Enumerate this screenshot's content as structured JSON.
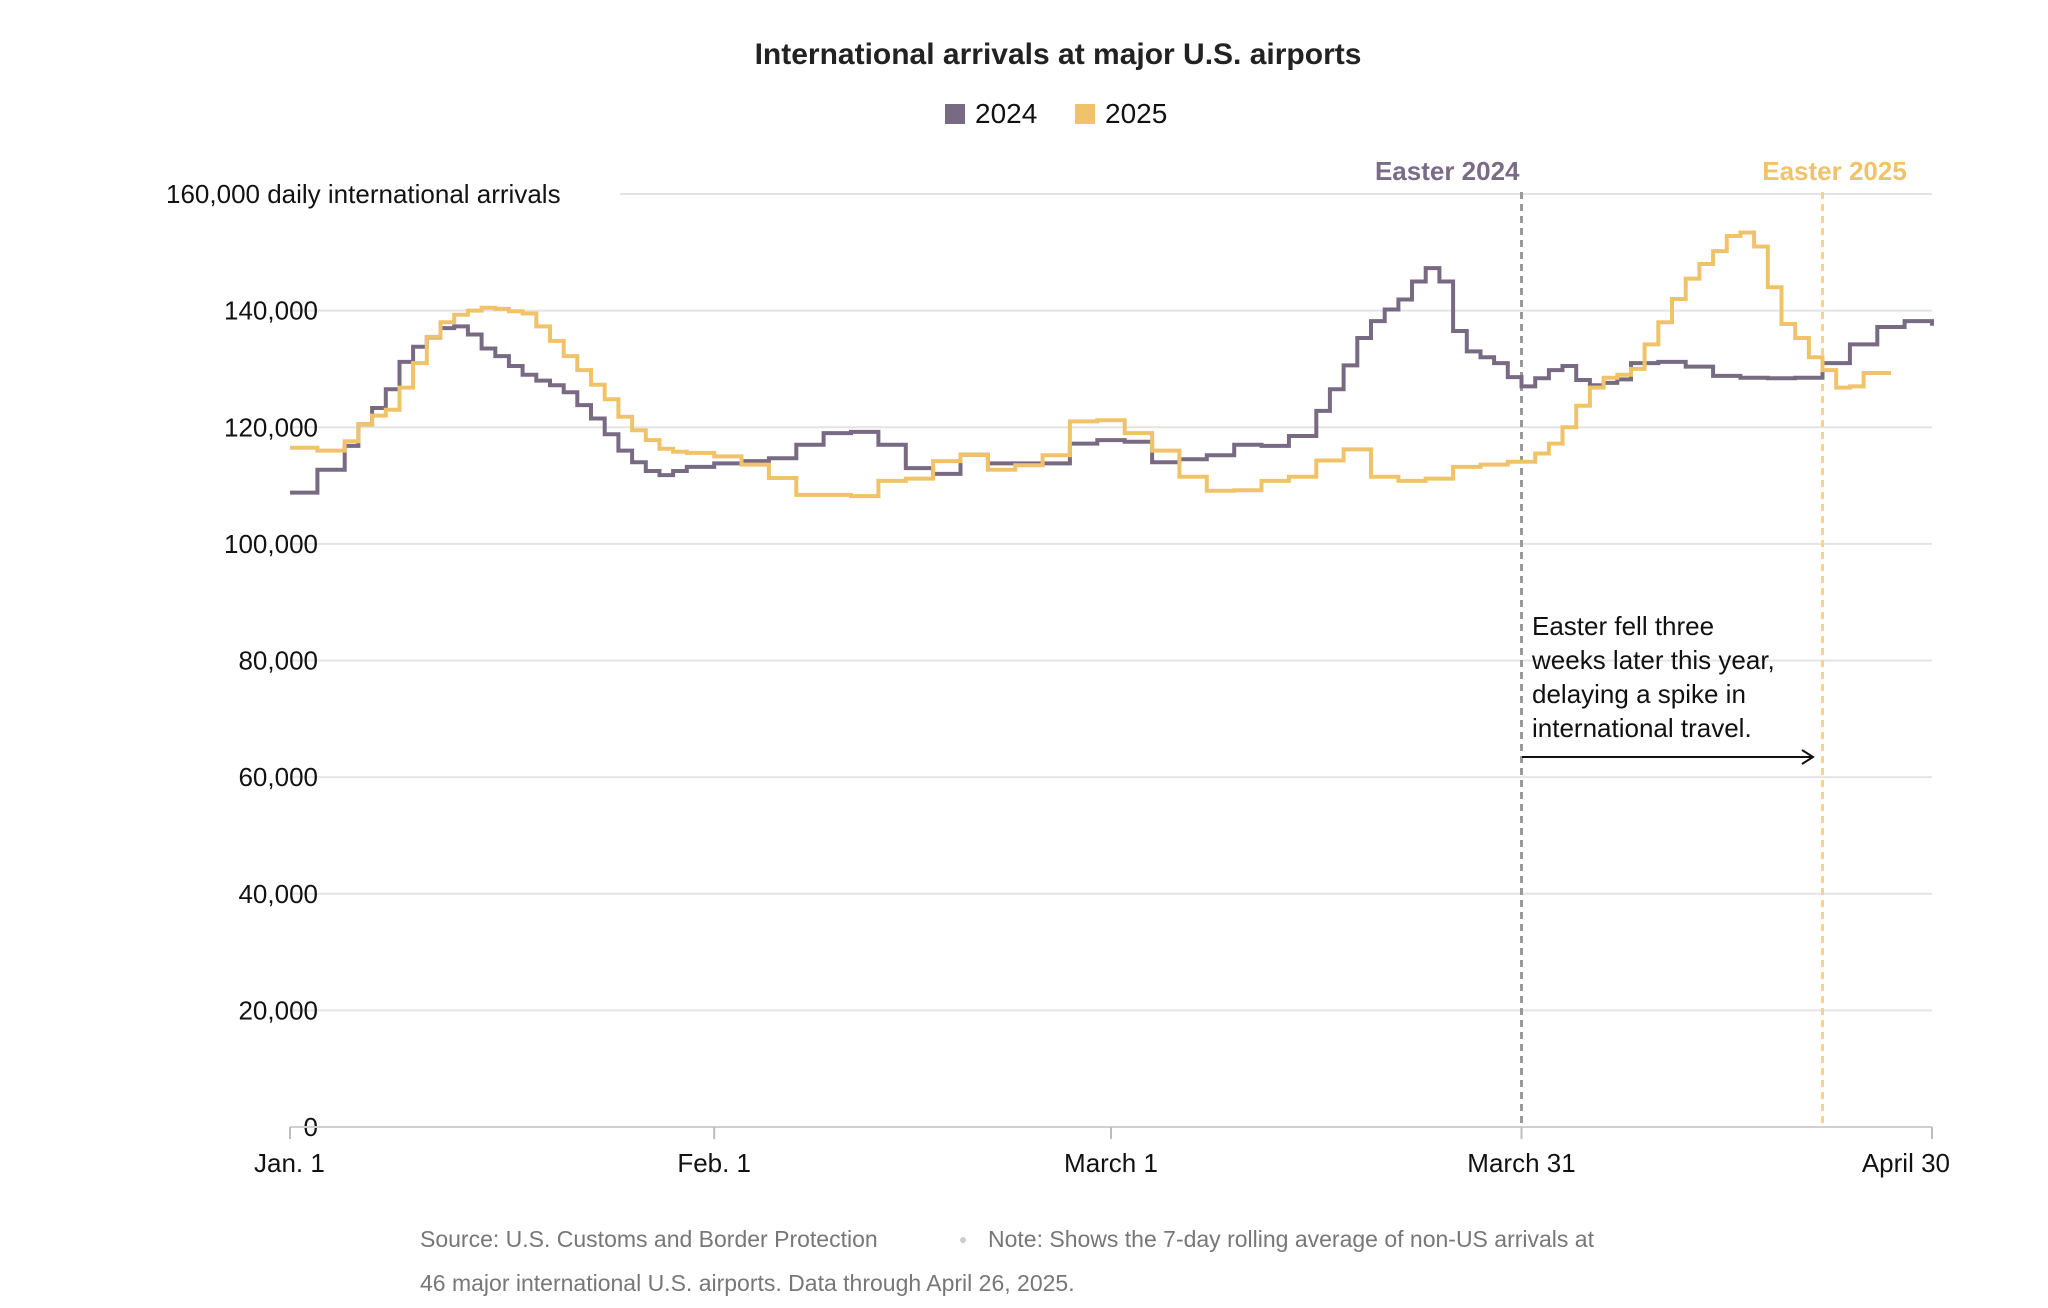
{
  "chart_data": {
    "type": "line",
    "title": "International arrivals at major U.S. airports",
    "xlabel": "",
    "ylabel": "daily international arrivals",
    "x_ticks": [
      "Jan. 1",
      "Feb. 1",
      "March 1",
      "March 31",
      "April 30"
    ],
    "y_ticks": [
      "0",
      "20,000",
      "40,000",
      "60,000",
      "80,000",
      "100,000",
      "120,000",
      "140,000",
      "160,000 daily international arrivals"
    ],
    "ylim": [
      0,
      160000
    ],
    "xlim": [
      "Jan. 1",
      "April 30"
    ],
    "grid": true,
    "legend_position": "top-center",
    "step_line": true,
    "series": [
      {
        "name": "2024",
        "color": "#786a82",
        "dates": [
          "01-01",
          "01-03",
          "01-05",
          "01-06",
          "01-07",
          "01-08",
          "01-09",
          "01-10",
          "01-11",
          "01-12",
          "01-13",
          "01-14",
          "01-15",
          "01-16",
          "01-17",
          "01-18",
          "01-19",
          "01-20",
          "01-21",
          "01-22",
          "01-23",
          "01-24",
          "01-25",
          "01-26",
          "01-27",
          "01-28",
          "01-29",
          "01-30",
          "02-01",
          "02-03",
          "02-05",
          "02-07",
          "02-09",
          "02-11",
          "02-13",
          "02-15",
          "02-17",
          "02-19",
          "02-21",
          "02-23",
          "02-25",
          "02-27",
          "02-29",
          "03-02",
          "03-04",
          "03-06",
          "03-08",
          "03-10",
          "03-12",
          "03-14",
          "03-16",
          "03-17",
          "03-18",
          "03-19",
          "03-20",
          "03-21",
          "03-22",
          "03-23",
          "03-24",
          "03-25",
          "03-26",
          "03-27",
          "03-28",
          "03-29",
          "03-30",
          "03-31",
          "04-01",
          "04-02",
          "04-03",
          "04-04",
          "04-05",
          "04-06",
          "04-07",
          "04-08",
          "04-10",
          "04-12",
          "04-14",
          "04-16",
          "04-18",
          "04-20",
          "04-22",
          "04-24",
          "04-26",
          "04-28",
          "04-30"
        ],
        "values": [
          108800,
          112700,
          116800,
          120500,
          123300,
          126500,
          131200,
          133800,
          135400,
          137000,
          137300,
          135900,
          133500,
          132200,
          130500,
          129000,
          128000,
          127200,
          126000,
          123800,
          121500,
          118800,
          116000,
          114000,
          112500,
          111800,
          112500,
          113200,
          113800,
          114200,
          114700,
          117000,
          119000,
          119200,
          117000,
          113000,
          112000,
          115300,
          113800,
          113800,
          113800,
          117200,
          117800,
          117500,
          114000,
          114500,
          115200,
          117000,
          116800,
          118500,
          122800,
          126500,
          130600,
          135300,
          138200,
          140200,
          141900,
          145000,
          147300,
          145000,
          136500,
          133000,
          132000,
          131000,
          128600,
          127000,
          128400,
          129800,
          130500,
          128100,
          127200,
          127600,
          128200,
          131000,
          131200,
          130400,
          128800,
          128500,
          128400,
          128500,
          131000,
          134200,
          137200,
          138200,
          137400
        ]
      },
      {
        "name": "2025",
        "color": "#f0c36a",
        "dates": [
          "01-01",
          "01-03",
          "01-05",
          "01-06",
          "01-07",
          "01-08",
          "01-09",
          "01-10",
          "01-11",
          "01-12",
          "01-13",
          "01-14",
          "01-15",
          "01-16",
          "01-17",
          "01-18",
          "01-19",
          "01-20",
          "01-21",
          "01-22",
          "01-23",
          "01-24",
          "01-25",
          "01-26",
          "01-27",
          "01-28",
          "01-29",
          "01-30",
          "02-01",
          "02-03",
          "02-05",
          "02-07",
          "02-09",
          "02-11",
          "02-13",
          "02-15",
          "02-17",
          "02-19",
          "02-21",
          "02-23",
          "02-25",
          "02-27",
          "02-29",
          "03-02",
          "03-04",
          "03-06",
          "03-08",
          "03-10",
          "03-12",
          "03-14",
          "03-16",
          "03-18",
          "03-20",
          "03-22",
          "03-24",
          "03-26",
          "03-28",
          "03-30",
          "04-01",
          "04-02",
          "04-03",
          "04-04",
          "04-05",
          "04-06",
          "04-07",
          "04-08",
          "04-09",
          "04-10",
          "04-11",
          "04-12",
          "04-13",
          "04-14",
          "04-15",
          "04-16",
          "04-17",
          "04-18",
          "04-19",
          "04-20",
          "04-21",
          "04-22",
          "04-23",
          "04-24",
          "04-25",
          "04-26"
        ],
        "values": [
          116500,
          116000,
          117600,
          120500,
          122000,
          123000,
          126800,
          131000,
          135500,
          138000,
          139300,
          140000,
          140500,
          140300,
          139900,
          139500,
          137300,
          134800,
          132200,
          129800,
          127300,
          124800,
          121800,
          119500,
          117800,
          116300,
          115800,
          115600,
          115000,
          113600,
          111300,
          108400,
          108400,
          108200,
          110800,
          111200,
          114200,
          115300,
          112700,
          113500,
          115200,
          121000,
          121200,
          119000,
          116000,
          111500,
          109100,
          109200,
          110800,
          111500,
          114300,
          116200,
          111500,
          110800,
          111200,
          113200,
          113600,
          114100,
          115500,
          117200,
          120000,
          123700,
          126800,
          128500,
          129000,
          130000,
          134200,
          138000,
          142000,
          145500,
          148000,
          150200,
          152800,
          153400,
          151000,
          144000,
          137700,
          135300,
          132000,
          129800,
          126800,
          127000,
          129300,
          129300
        ]
      }
    ],
    "annotations": [
      {
        "label": "Easter 2024",
        "date": "03-31",
        "color": "#9a9a9a",
        "label_color": "#7a6b86"
      },
      {
        "label": "Easter 2025",
        "date": "04-22",
        "color": "#f5d38e",
        "label_color": "#f0c36a"
      }
    ],
    "note_lines": [
      "Easter fell three",
      "weeks later this year,",
      "delaying a spike in",
      "international travel."
    ]
  },
  "legend": {
    "items": [
      "2024",
      "2025"
    ]
  },
  "source_lines": [
    "Source: U.S. Customs and Border Protection",
    "Note: Shows the 7-day rolling average of non-US arrivals at",
    "46 major international U.S. airports. Data through April 26, 2025."
  ]
}
